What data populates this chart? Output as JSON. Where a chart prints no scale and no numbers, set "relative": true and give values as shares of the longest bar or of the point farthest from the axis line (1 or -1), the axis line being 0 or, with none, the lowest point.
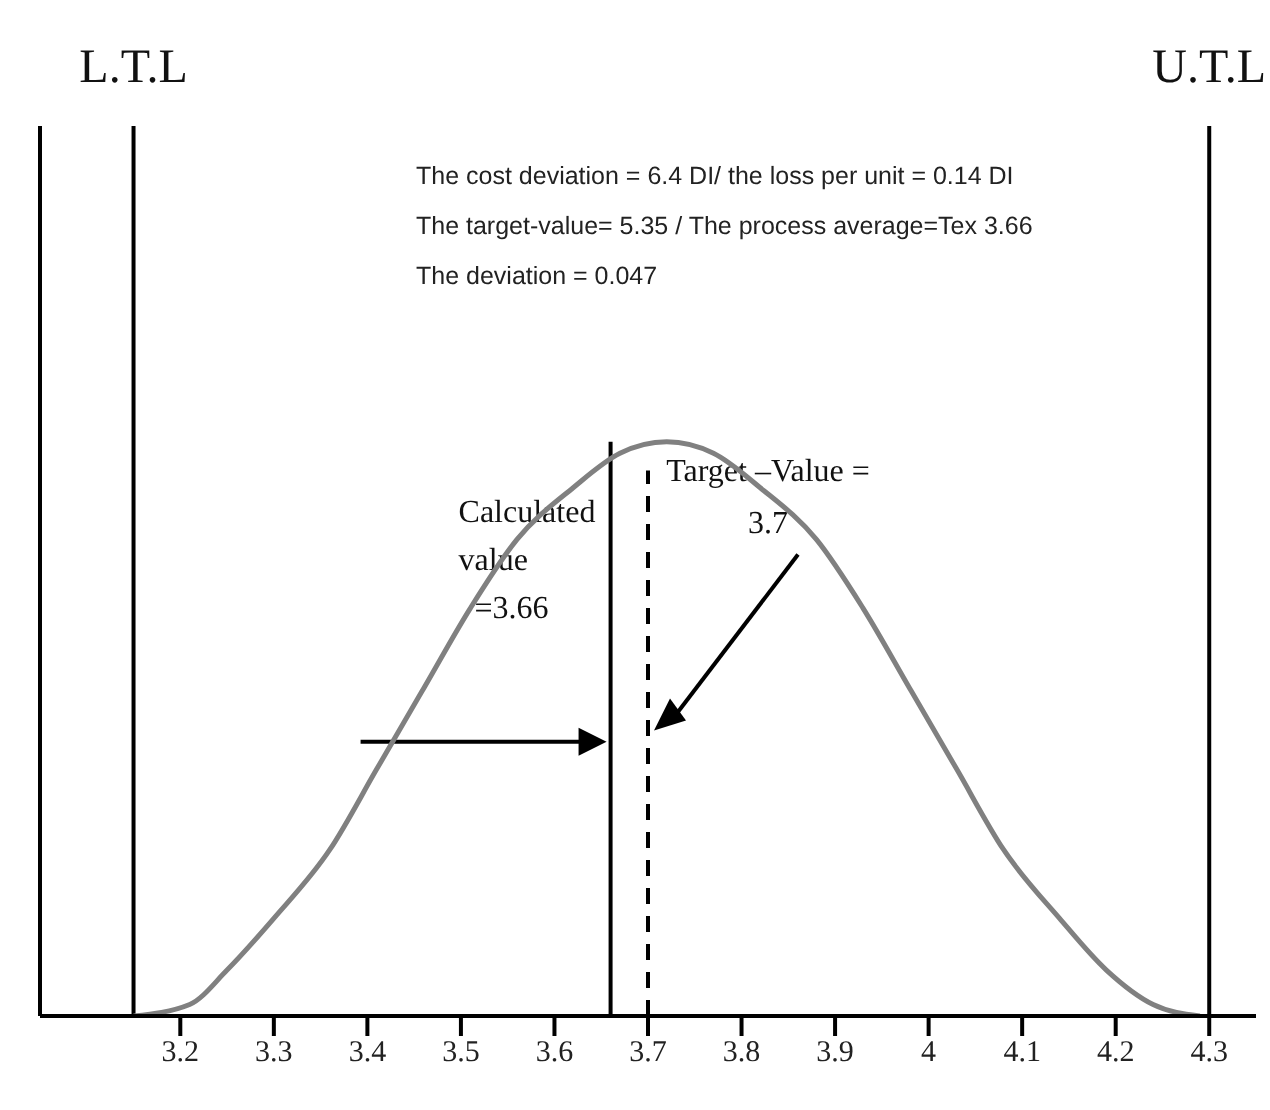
{
  "chart_data": {
    "type": "line",
    "relative": true,
    "x": [
      3.15,
      3.21,
      3.25,
      3.3,
      3.36,
      3.41,
      3.46,
      3.51,
      3.56,
      3.62,
      3.67,
      3.72,
      3.77,
      3.82,
      3.88,
      3.93,
      3.98,
      4.03,
      4.08,
      4.14,
      4.19,
      4.24,
      4.29
    ],
    "series": [
      {
        "color": "#808080",
        "values": [
          0,
          0.02,
          0.08,
          0.17,
          0.29,
          0.43,
          0.57,
          0.71,
          0.83,
          0.92,
          0.98,
          1,
          0.98,
          0.92,
          0.83,
          0.71,
          0.57,
          0.43,
          0.29,
          0.17,
          0.08,
          0.02,
          0
        ]
      }
    ],
    "xlim": [
      3.05,
      4.35
    ],
    "xticks": [
      3.2,
      3.3,
      3.4,
      3.5,
      3.6,
      3.7,
      3.8,
      3.9,
      4,
      4.1,
      4.2,
      4.3
    ],
    "tick_labels": "x",
    "marker": "none",
    "line_style": "solid",
    "grid": false,
    "legend": false,
    "ref_lines": [
      {
        "axis": "x",
        "value": 3.15,
        "label": "L.T.L",
        "color": "#000000"
      },
      {
        "axis": "x",
        "value": 3.66,
        "label": "Calculated value =3.66",
        "color": "#000000"
      },
      {
        "axis": "x",
        "value": 3.7,
        "label": "Target –Value = 3.7",
        "color": "#000000",
        "line_style": "dashed"
      },
      {
        "axis": "x",
        "value": 4.3,
        "label": "U.T.L",
        "color": "#000000"
      }
    ],
    "annotations": [
      "The cost deviation = 6.4 DI/ the loss per unit = 0.14 DI",
      "The target-value= 5.35 / The process average=Tex 3.66",
      "The deviation = 0.047"
    ]
  }
}
